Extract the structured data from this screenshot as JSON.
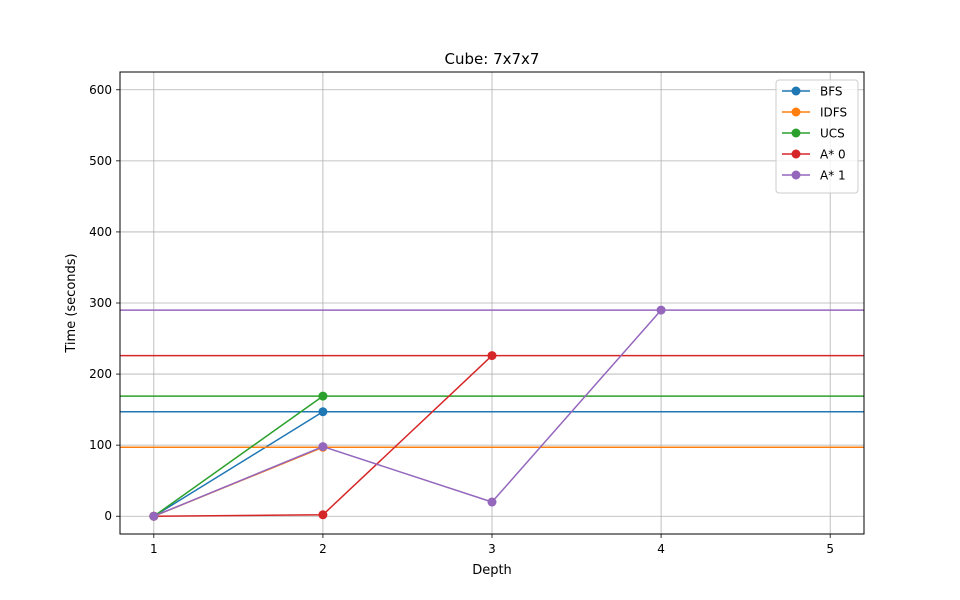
{
  "chart_data": {
    "type": "line",
    "title": "Cube: 7x7x7",
    "xlabel": "Depth",
    "ylabel": "Time (seconds)",
    "xlim": [
      0.8,
      5.2
    ],
    "ylim": [
      -25,
      625
    ],
    "xticks": [
      1,
      2,
      3,
      4,
      5
    ],
    "yticks": [
      0,
      100,
      200,
      300,
      400,
      500,
      600
    ],
    "grid": true,
    "legend_position": "top-right",
    "series": [
      {
        "name": "BFS",
        "color": "#1f77b4",
        "points": [
          [
            1,
            0
          ],
          [
            2,
            147
          ]
        ],
        "hline": 147
      },
      {
        "name": "IDFS",
        "color": "#ff7f0e",
        "points": [
          [
            1,
            0
          ],
          [
            2,
            97
          ]
        ],
        "hline": 97
      },
      {
        "name": "UCS",
        "color": "#2ca02c",
        "points": [
          [
            1,
            0
          ],
          [
            2,
            169
          ]
        ],
        "hline": 169
      },
      {
        "name": "A* 0",
        "color": "#d62728",
        "points": [
          [
            1,
            0
          ],
          [
            2,
            2
          ],
          [
            3,
            226
          ]
        ],
        "hline": 226
      },
      {
        "name": "A* 1",
        "color": "#9467bd",
        "points": [
          [
            1,
            0
          ],
          [
            2,
            98
          ],
          [
            3,
            20
          ],
          [
            4,
            290
          ]
        ],
        "hline": 290
      }
    ]
  }
}
